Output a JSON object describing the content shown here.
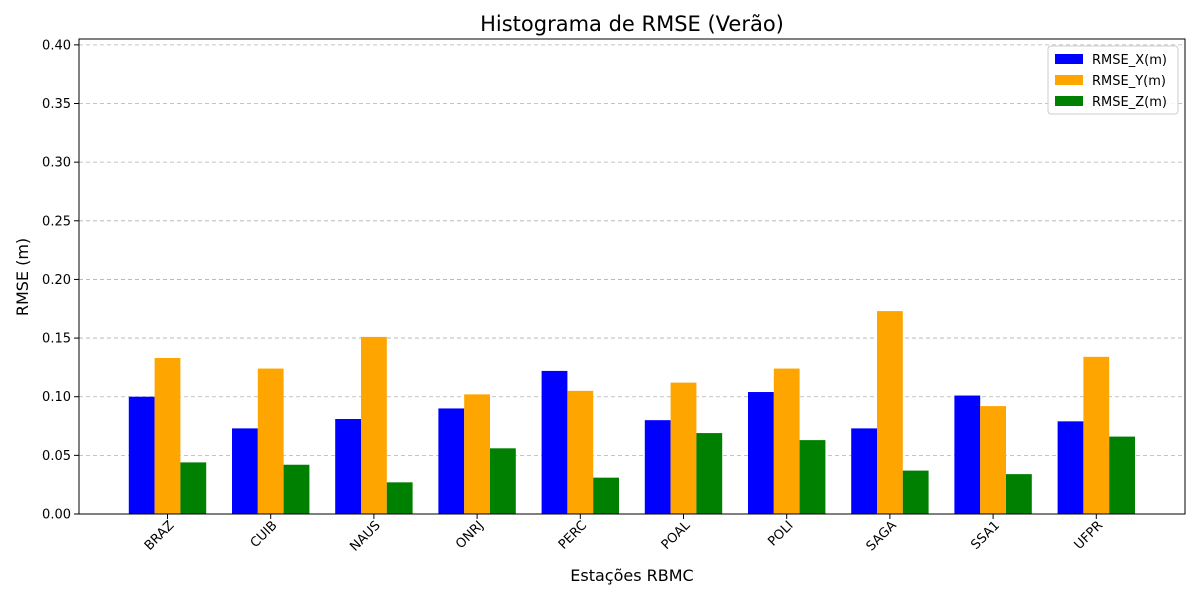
{
  "chart_data": {
    "type": "bar",
    "title": "Histograma de RMSE (Verão)",
    "xlabel": "Estações RBMC",
    "ylabel": "RMSE (m)",
    "categories": [
      "BRAZ",
      "CUIB",
      "NAUS",
      "ONRJ",
      "PERC",
      "POAL",
      "POLI",
      "SAGA",
      "SSA1",
      "UFPR"
    ],
    "series": [
      {
        "name": "RMSE_X(m)",
        "color": "#0000ff",
        "values": [
          0.1,
          0.073,
          0.081,
          0.09,
          0.122,
          0.08,
          0.104,
          0.073,
          0.101,
          0.079
        ]
      },
      {
        "name": "RMSE_Y(m)",
        "color": "#ffa500",
        "values": [
          0.133,
          0.124,
          0.151,
          0.102,
          0.105,
          0.112,
          0.124,
          0.173,
          0.092,
          0.134
        ]
      },
      {
        "name": "RMSE_Z(m)",
        "color": "#008000",
        "values": [
          0.044,
          0.042,
          0.027,
          0.056,
          0.031,
          0.069,
          0.063,
          0.037,
          0.034,
          0.066
        ]
      }
    ],
    "ylim": [
      0,
      0.405
    ],
    "yticks": [
      "0.00",
      "0.05",
      "0.10",
      "0.15",
      "0.20",
      "0.25",
      "0.30",
      "0.35",
      "0.40"
    ],
    "grid": "y-dashed",
    "legend_position": "top-right"
  }
}
